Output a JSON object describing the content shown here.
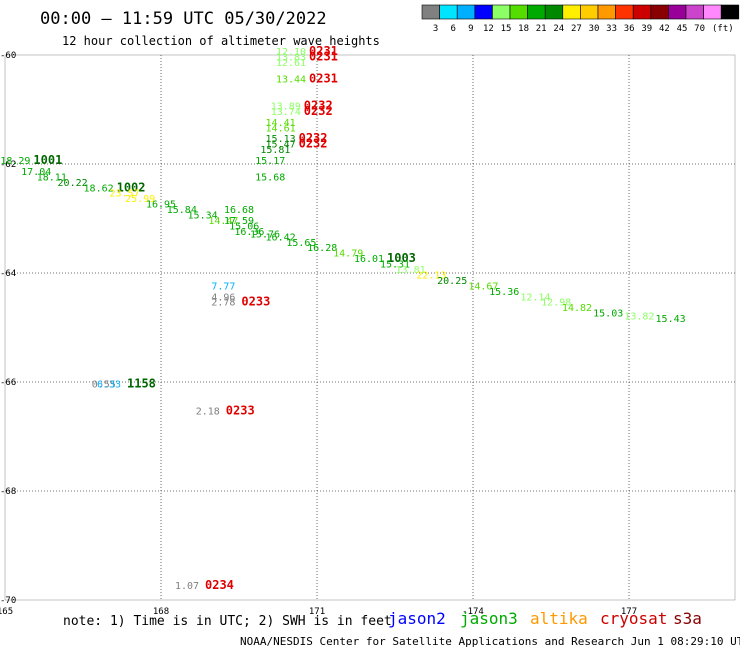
{
  "header": {
    "title": "00:00 – 11:59 UTC 05/30/2022",
    "subtitle": "12 hour collection of altimeter wave heights"
  },
  "legend": {
    "unit": "(ft)",
    "colors": [
      "#808080",
      "#00e5ff",
      "#00b0ff",
      "#0000ff",
      "#8cff66",
      "#55dd00",
      "#00aa00",
      "#008800",
      "#ffee00",
      "#ffcc00",
      "#ff9900",
      "#ff3300",
      "#cc0000",
      "#880000",
      "#990099",
      "#cc44cc",
      "#ff88ff",
      "#000000"
    ],
    "ticks": [
      "3",
      "6",
      "9",
      "12",
      "15",
      "18",
      "21",
      "24",
      "27",
      "30",
      "33",
      "36",
      "39",
      "42",
      "45",
      "70"
    ]
  },
  "chart_data": {
    "type": "scatter",
    "x_ticks": [
      "165",
      "168",
      "171",
      "-174",
      "177"
    ],
    "y_ticks": [
      "-60",
      "-62",
      "-64",
      "-66",
      "-68",
      "-70"
    ],
    "xlim": [
      165,
      180
    ],
    "ylim": [
      -70,
      -60
    ],
    "points": [
      {
        "lon": 170.5,
        "lat": -60.0,
        "swh": "12.10",
        "time": "0231",
        "c": "#8cff66"
      },
      {
        "lon": 170.5,
        "lat": -60.1,
        "swh": "13.83",
        "time": "0231",
        "c": "#8cff66"
      },
      {
        "lon": 170.5,
        "lat": -60.2,
        "swh": "12.61",
        "time": "",
        "c": "#8cff66"
      },
      {
        "lon": 170.5,
        "lat": -60.5,
        "swh": "13.44",
        "time": "0231",
        "c": "#55dd00"
      },
      {
        "lon": 170.4,
        "lat": -61.0,
        "swh": "13.89",
        "time": "0232",
        "c": "#8cff66"
      },
      {
        "lon": 170.4,
        "lat": -61.1,
        "swh": "13.74",
        "time": "0232",
        "c": "#8cff66"
      },
      {
        "lon": 170.3,
        "lat": -61.3,
        "swh": "14.41",
        "time": "",
        "c": "#55dd00"
      },
      {
        "lon": 170.3,
        "lat": -61.4,
        "swh": "14.61",
        "time": "",
        "c": "#55dd00"
      },
      {
        "lon": 170.3,
        "lat": -61.6,
        "swh": "15.13",
        "time": "0232",
        "c": "#008800"
      },
      {
        "lon": 170.3,
        "lat": -61.7,
        "swh": "15.47",
        "time": "0232",
        "c": "#008800"
      },
      {
        "lon": 170.2,
        "lat": -61.8,
        "swh": "15.81",
        "time": "",
        "c": "#008800"
      },
      {
        "lon": 170.1,
        "lat": -62.0,
        "swh": "15.17",
        "time": "",
        "c": "#00aa00"
      },
      {
        "lon": 170.1,
        "lat": -62.3,
        "swh": "15.68",
        "time": "",
        "c": "#00aa00"
      },
      {
        "lon": 165.2,
        "lat": -62.0,
        "swh": "18.29",
        "time": "1001",
        "c": "#00aa00"
      },
      {
        "lon": 165.6,
        "lat": -62.2,
        "swh": "17.04",
        "time": "",
        "c": "#00aa00"
      },
      {
        "lon": 165.9,
        "lat": -62.3,
        "swh": "18.11",
        "time": "",
        "c": "#00aa00"
      },
      {
        "lon": 166.3,
        "lat": -62.4,
        "swh": "20.22",
        "time": "",
        "c": "#008800"
      },
      {
        "lon": 166.8,
        "lat": -62.5,
        "swh": "18.62",
        "time": "1002",
        "c": "#00aa00"
      },
      {
        "lon": 167.3,
        "lat": -62.6,
        "swh": "23.57",
        "time": "",
        "c": "#ffee00"
      },
      {
        "lon": 167.6,
        "lat": -62.7,
        "swh": "25.99",
        "time": "",
        "c": "#ffee00"
      },
      {
        "lon": 168.0,
        "lat": -62.8,
        "swh": "16.95",
        "time": "",
        "c": "#00aa00"
      },
      {
        "lon": 168.4,
        "lat": -62.9,
        "swh": "15.84",
        "time": "",
        "c": "#00aa00"
      },
      {
        "lon": 168.8,
        "lat": -63.0,
        "swh": "15.34",
        "time": "",
        "c": "#00aa00"
      },
      {
        "lon": 169.2,
        "lat": -63.1,
        "swh": "14.47",
        "time": "",
        "c": "#55dd00"
      },
      {
        "lon": 169.5,
        "lat": -62.9,
        "swh": "16.68",
        "time": "",
        "c": "#00aa00"
      },
      {
        "lon": 169.5,
        "lat": -63.1,
        "swh": "17.59",
        "time": "",
        "c": "#00aa00"
      },
      {
        "lon": 169.6,
        "lat": -63.2,
        "swh": "15.06",
        "time": "",
        "c": "#00aa00"
      },
      {
        "lon": 169.7,
        "lat": -63.3,
        "swh": "16.36",
        "time": "",
        "c": "#00aa00"
      },
      {
        "lon": 170.0,
        "lat": -63.35,
        "swh": "15.76",
        "time": "",
        "c": "#00aa00"
      },
      {
        "lon": 170.3,
        "lat": -63.4,
        "swh": "16.42",
        "time": "",
        "c": "#00aa00"
      },
      {
        "lon": 170.7,
        "lat": -63.5,
        "swh": "15.65",
        "time": "",
        "c": "#00aa00"
      },
      {
        "lon": 171.1,
        "lat": -63.6,
        "swh": "16.28",
        "time": "",
        "c": "#00aa00"
      },
      {
        "lon": 171.6,
        "lat": -63.7,
        "swh": "14.79",
        "time": "",
        "c": "#55dd00"
      },
      {
        "lon": 172.0,
        "lat": -63.8,
        "swh": "16.01",
        "time": "1003",
        "c": "#00aa00"
      },
      {
        "lon": 172.5,
        "lat": -63.9,
        "swh": "15.31",
        "time": "",
        "c": "#00aa00"
      },
      {
        "lon": 172.8,
        "lat": -64.0,
        "swh": "13.81",
        "time": "",
        "c": "#8cff66"
      },
      {
        "lon": 173.2,
        "lat": -64.1,
        "swh": "22.13",
        "time": "",
        "c": "#ffee00"
      },
      {
        "lon": 173.6,
        "lat": -64.2,
        "swh": "20.25",
        "time": "",
        "c": "#008800"
      },
      {
        "lon": 174.2,
        "lat": -64.3,
        "swh": "14.67",
        "time": "",
        "c": "#55dd00"
      },
      {
        "lon": 174.6,
        "lat": -64.4,
        "swh": "15.36",
        "time": "",
        "c": "#00aa00"
      },
      {
        "lon": 175.2,
        "lat": -64.5,
        "swh": "12.14",
        "time": "",
        "c": "#8cff66"
      },
      {
        "lon": 175.6,
        "lat": -64.6,
        "swh": "12.98",
        "time": "",
        "c": "#8cff66"
      },
      {
        "lon": 176.0,
        "lat": -64.7,
        "swh": "14.82",
        "time": "",
        "c": "#55dd00"
      },
      {
        "lon": 176.6,
        "lat": -64.8,
        "swh": "15.03",
        "time": "",
        "c": "#00aa00"
      },
      {
        "lon": 177.2,
        "lat": -64.85,
        "swh": "13.82",
        "time": "",
        "c": "#8cff66"
      },
      {
        "lon": 177.8,
        "lat": -64.9,
        "swh": "15.43",
        "time": "",
        "c": "#00aa00"
      },
      {
        "lon": 169.2,
        "lat": -64.3,
        "swh": "7.77",
        "time": "",
        "c": "#00b0ff"
      },
      {
        "lon": 169.2,
        "lat": -64.5,
        "swh": "4.96",
        "time": "",
        "c": "#808080"
      },
      {
        "lon": 169.2,
        "lat": -64.6,
        "swh": "2.78",
        "time": "0233",
        "c": "#808080"
      },
      {
        "lon": 166.9,
        "lat": -66.1,
        "swh": "0.55",
        "time": "",
        "c": "#808080"
      },
      {
        "lon": 167.0,
        "lat": -66.1,
        "swh": "6.33",
        "time": "1158",
        "c": "#00b0ff"
      },
      {
        "lon": 168.9,
        "lat": -66.6,
        "swh": "2.18",
        "time": "0233",
        "c": "#808080"
      },
      {
        "lon": 168.5,
        "lat": -69.8,
        "swh": "1.07",
        "time": "0234",
        "c": "#808080"
      }
    ]
  },
  "note": "note: 1) Time is in UTC; 2) SWH is in feet",
  "satellites": [
    {
      "name": "jason2",
      "color": "#0000ff"
    },
    {
      "name": "jason3",
      "color": "#00aa00"
    },
    {
      "name": "altika",
      "color": "#ff9900"
    },
    {
      "name": "cryosat",
      "color": "#cc0000"
    },
    {
      "name": "s3a",
      "color": "#880000"
    }
  ],
  "footer": "NOAA/NESDIS Center for Satellite Applications and Research   Jun  1 08:29:10 UTC 2022"
}
